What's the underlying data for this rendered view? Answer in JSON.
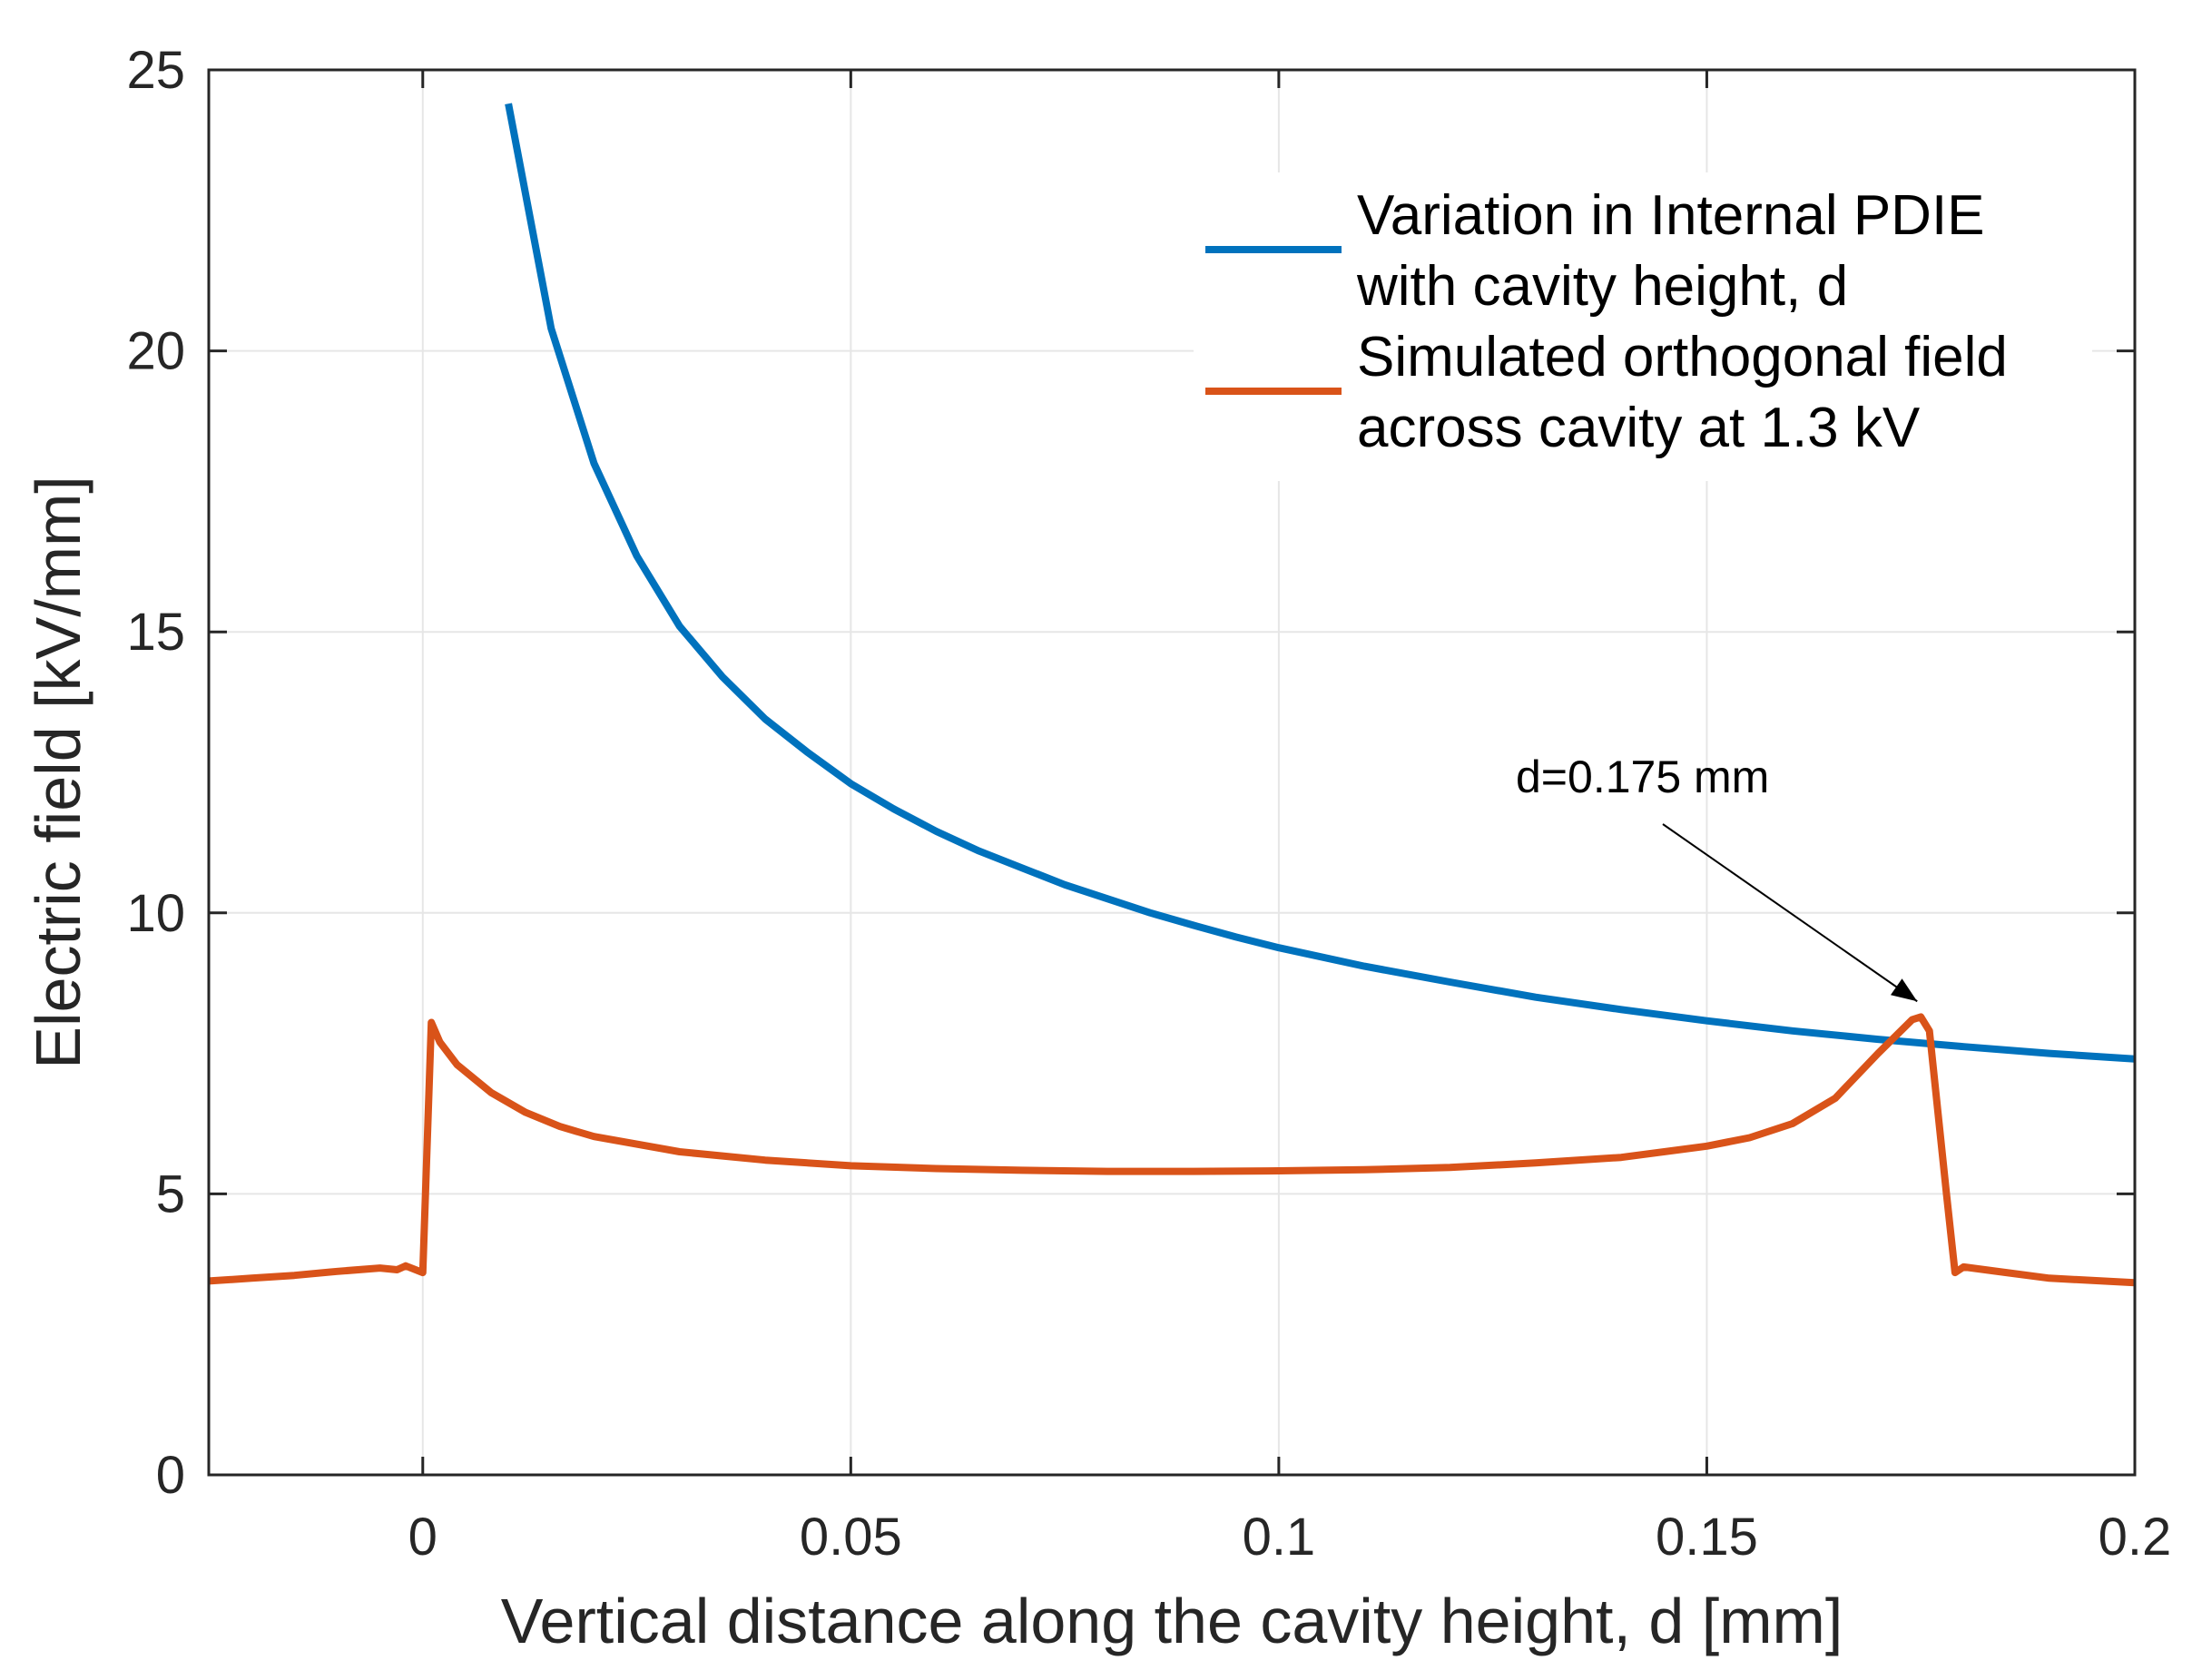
{
  "chart_data": {
    "type": "line",
    "xlabel": "Vertical distance along the cavity height, d [mm]",
    "ylabel": "Electric field [kV/mm]",
    "xlim": [
      -0.025,
      0.2
    ],
    "ylim": [
      0,
      25
    ],
    "xticks": [
      0,
      0.05,
      0.1,
      0.15,
      0.2
    ],
    "xtick_labels": [
      "0",
      "0.05",
      "0.1",
      "0.15",
      "0.2"
    ],
    "yticks": [
      0,
      5,
      10,
      15,
      20,
      25
    ],
    "ytick_labels": [
      "0",
      "5",
      "10",
      "15",
      "20",
      "25"
    ],
    "grid": true,
    "legend_position": "top-right",
    "series": [
      {
        "name": "Variation in Internal PDIE with cavity height, d",
        "legend_lines": [
          "Variation in Internal PDIE",
          "with cavity height, d"
        ],
        "color": "#0072BD",
        "x": [
          0.01,
          0.015,
          0.02,
          0.025,
          0.03,
          0.035,
          0.04,
          0.045,
          0.05,
          0.055,
          0.06,
          0.065,
          0.07,
          0.075,
          0.08,
          0.085,
          0.09,
          0.095,
          0.1,
          0.11,
          0.12,
          0.13,
          0.14,
          0.15,
          0.16,
          0.17,
          0.18,
          0.19,
          0.2
        ],
        "y": [
          24.4,
          20.4,
          18.0,
          16.35,
          15.1,
          14.2,
          13.45,
          12.85,
          12.3,
          11.85,
          11.45,
          11.1,
          10.8,
          10.5,
          10.25,
          10.0,
          9.78,
          9.57,
          9.38,
          9.05,
          8.77,
          8.5,
          8.28,
          8.08,
          7.9,
          7.75,
          7.62,
          7.5,
          7.4
        ]
      },
      {
        "name": "Simulated orthogonal field across cavity at 1.3 kV",
        "legend_lines": [
          "Simulated orthogonal field",
          "across cavity at 1.3 kV"
        ],
        "color": "#D95319",
        "x": [
          -0.025,
          -0.02,
          -0.015,
          -0.01,
          -0.005,
          -0.003,
          -0.002,
          0.0,
          0.001,
          0.002,
          0.004,
          0.008,
          0.012,
          0.016,
          0.02,
          0.03,
          0.04,
          0.05,
          0.06,
          0.07,
          0.08,
          0.09,
          0.1,
          0.11,
          0.12,
          0.13,
          0.14,
          0.15,
          0.155,
          0.16,
          0.165,
          0.17,
          0.174,
          0.175,
          0.176,
          0.178,
          0.179,
          0.18,
          0.185,
          0.19,
          0.2
        ],
        "y": [
          3.45,
          3.5,
          3.55,
          3.62,
          3.68,
          3.65,
          3.72,
          3.6,
          8.05,
          7.7,
          7.3,
          6.8,
          6.45,
          6.2,
          6.02,
          5.75,
          5.6,
          5.5,
          5.45,
          5.42,
          5.4,
          5.4,
          5.41,
          5.43,
          5.47,
          5.55,
          5.65,
          5.85,
          6.0,
          6.25,
          6.7,
          7.5,
          8.1,
          8.15,
          7.9,
          5.0,
          3.6,
          3.7,
          3.6,
          3.5,
          3.42
        ]
      }
    ],
    "annotations": [
      {
        "text": "d=0.175 mm",
        "arrow_to": [
          0.175,
          8.2
        ]
      }
    ]
  }
}
